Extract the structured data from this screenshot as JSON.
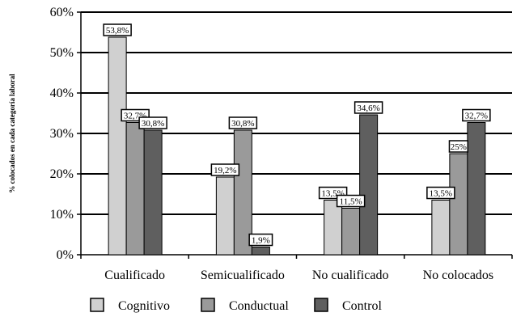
{
  "chart_data": {
    "type": "bar",
    "ylabel": "% colocados en cada categoría laboral",
    "ylim": [
      0,
      60
    ],
    "yticks": [
      0,
      10,
      20,
      30,
      40,
      50,
      60
    ],
    "ytick_labels": [
      "0%",
      "10%",
      "20%",
      "30%",
      "40%",
      "50%",
      "60%"
    ],
    "grid": true,
    "legend_position": "bottom",
    "categories": [
      "Cualificado",
      "Semicualificado",
      "No cualificado",
      "No colocados"
    ],
    "series": [
      {
        "name": "Cognitivo",
        "color": "#d0d0d0",
        "values": [
          53.8,
          19.2,
          13.5,
          13.5
        ],
        "labels": [
          "53,8%",
          "19,2%",
          "13,5%",
          "13,5%"
        ]
      },
      {
        "name": "Conductual",
        "color": "#9a9a9a",
        "values": [
          32.7,
          30.8,
          11.5,
          25
        ],
        "labels": [
          "32,7%",
          "30,8%",
          "11,5%",
          "25%"
        ]
      },
      {
        "name": "Control",
        "color": "#5f5f5f",
        "values": [
          30.8,
          1.9,
          34.6,
          32.7
        ],
        "labels": [
          "30,8%",
          "1,9%",
          "34,6%",
          "32,7%"
        ]
      }
    ]
  }
}
